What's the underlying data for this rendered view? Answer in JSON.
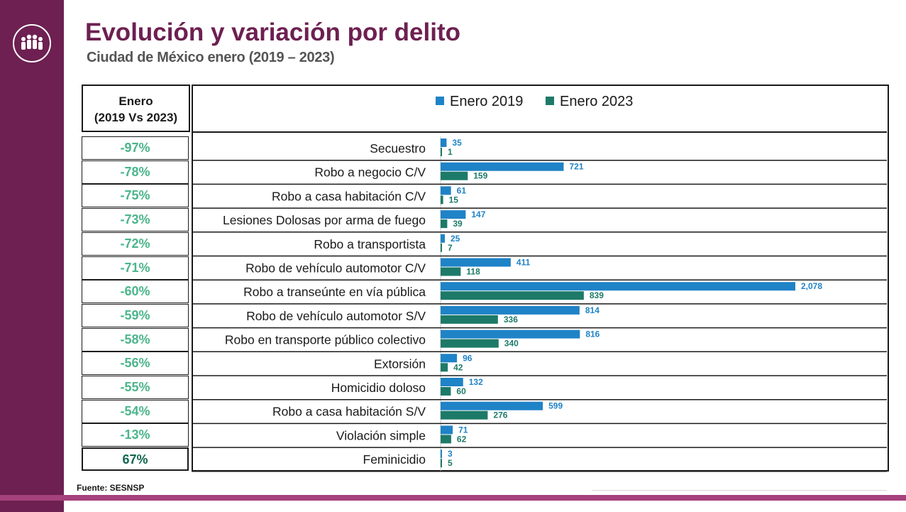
{
  "header": {
    "title": "Evolución y variación por delito",
    "subtitle": "Ciudad de México enero (2019 – 2023)"
  },
  "table_header": {
    "line1": "Enero",
    "line2": "(2019 Vs 2023)"
  },
  "source": "Fuente: SESNSP",
  "colors": {
    "brand": "#6d2051",
    "series_2019": "#1f83c7",
    "series_2023": "#1d7a68",
    "pct_negative": "#4bb58b",
    "pct_positive": "#12664f"
  },
  "chart_data": {
    "type": "bar",
    "orientation": "horizontal",
    "legend_position": "top",
    "categories": [
      "Secuestro",
      "Robo a negocio C/V",
      "Robo a casa habitación C/V",
      "Lesiones Dolosas por arma de fuego",
      "Robo a transportista",
      "Robo de vehículo automotor C/V",
      "Robo a transeúnte en vía pública",
      "Robo de vehículo automotor S/V",
      "Robo en transporte público colectivo",
      "Extorsión",
      "Homicidio doloso",
      "Robo a casa habitación S/V",
      "Violación simple",
      "Feminicidio"
    ],
    "series": [
      {
        "name": "Enero 2019",
        "values": [
          35,
          721,
          61,
          147,
          25,
          411,
          2078,
          814,
          816,
          96,
          132,
          599,
          71,
          3
        ],
        "labels": [
          "35",
          "721",
          "61",
          "147",
          "25",
          "411",
          "2,078",
          "814",
          "816",
          "96",
          "132",
          "599",
          "71",
          "3"
        ]
      },
      {
        "name": "Enero 2023",
        "values": [
          1,
          159,
          15,
          39,
          7,
          118,
          839,
          336,
          340,
          42,
          60,
          276,
          62,
          5
        ],
        "labels": [
          "1",
          "159",
          "15",
          "39",
          "7",
          "118",
          "839",
          "336",
          "340",
          "42",
          "60",
          "276",
          "62",
          "5"
        ]
      }
    ],
    "variation": [
      "-97%",
      "-78%",
      "-75%",
      "-73%",
      "-72%",
      "-71%",
      "-60%",
      "-59%",
      "-58%",
      "-56%",
      "-55%",
      "-54%",
      "-13%",
      "67%"
    ]
  }
}
